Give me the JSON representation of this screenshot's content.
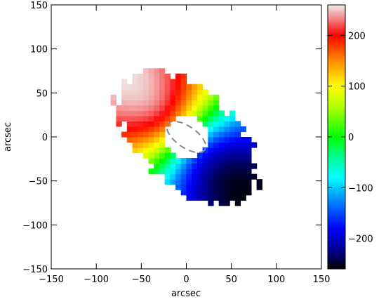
{
  "chart_data": {
    "type": "heatmap",
    "title": "",
    "xlabel": "arcsec",
    "ylabel": "arcsec",
    "xlim": [
      -150,
      150
    ],
    "ylim": [
      -150,
      150
    ],
    "xticks": [
      -150,
      -100,
      -50,
      0,
      50,
      100,
      150
    ],
    "yticks": [
      -150,
      -100,
      -50,
      0,
      50,
      100,
      150
    ],
    "xtick_labels": [
      "−150",
      "−100",
      "−50",
      "0",
      "50",
      "100",
      "150"
    ],
    "ytick_labels": [
      "−150",
      "−100",
      "−50",
      "0",
      "50",
      "100",
      "150"
    ],
    "colorbar": {
      "range": [
        -260,
        260
      ],
      "ticks": [
        200,
        100,
        0,
        -100,
        -200
      ],
      "tick_labels": [
        "200",
        "100",
        "0",
        "−100",
        "−200"
      ]
    },
    "colormap_stops": [
      {
        "v": -260,
        "color": "#000000"
      },
      {
        "v": -225,
        "color": "#00008c"
      },
      {
        "v": -180,
        "color": "#0000ff"
      },
      {
        "v": -120,
        "color": "#0096ff"
      },
      {
        "v": -80,
        "color": "#00ffff"
      },
      {
        "v": -40,
        "color": "#00ff96"
      },
      {
        "v": 0,
        "color": "#00ff00"
      },
      {
        "v": 60,
        "color": "#b4ff00"
      },
      {
        "v": 100,
        "color": "#ffff00"
      },
      {
        "v": 150,
        "color": "#ff8c00"
      },
      {
        "v": 200,
        "color": "#ff0000"
      },
      {
        "v": 260,
        "color": "#eeeeee"
      }
    ],
    "velocity_field": {
      "major_axis_pa_deg": 135,
      "outer_radius_arcsec": 95,
      "inner_hole_radius_arcsec": 25,
      "max_velocity": 240,
      "approaching_side": "bottom-right",
      "receding_side": "top-left"
    },
    "center_ellipse": {
      "x": 0,
      "y": 0,
      "semi_major_arcsec": 25,
      "semi_minor_arcsec": 12,
      "pa_deg": -35,
      "style": "dashed",
      "color": "#888888"
    }
  }
}
